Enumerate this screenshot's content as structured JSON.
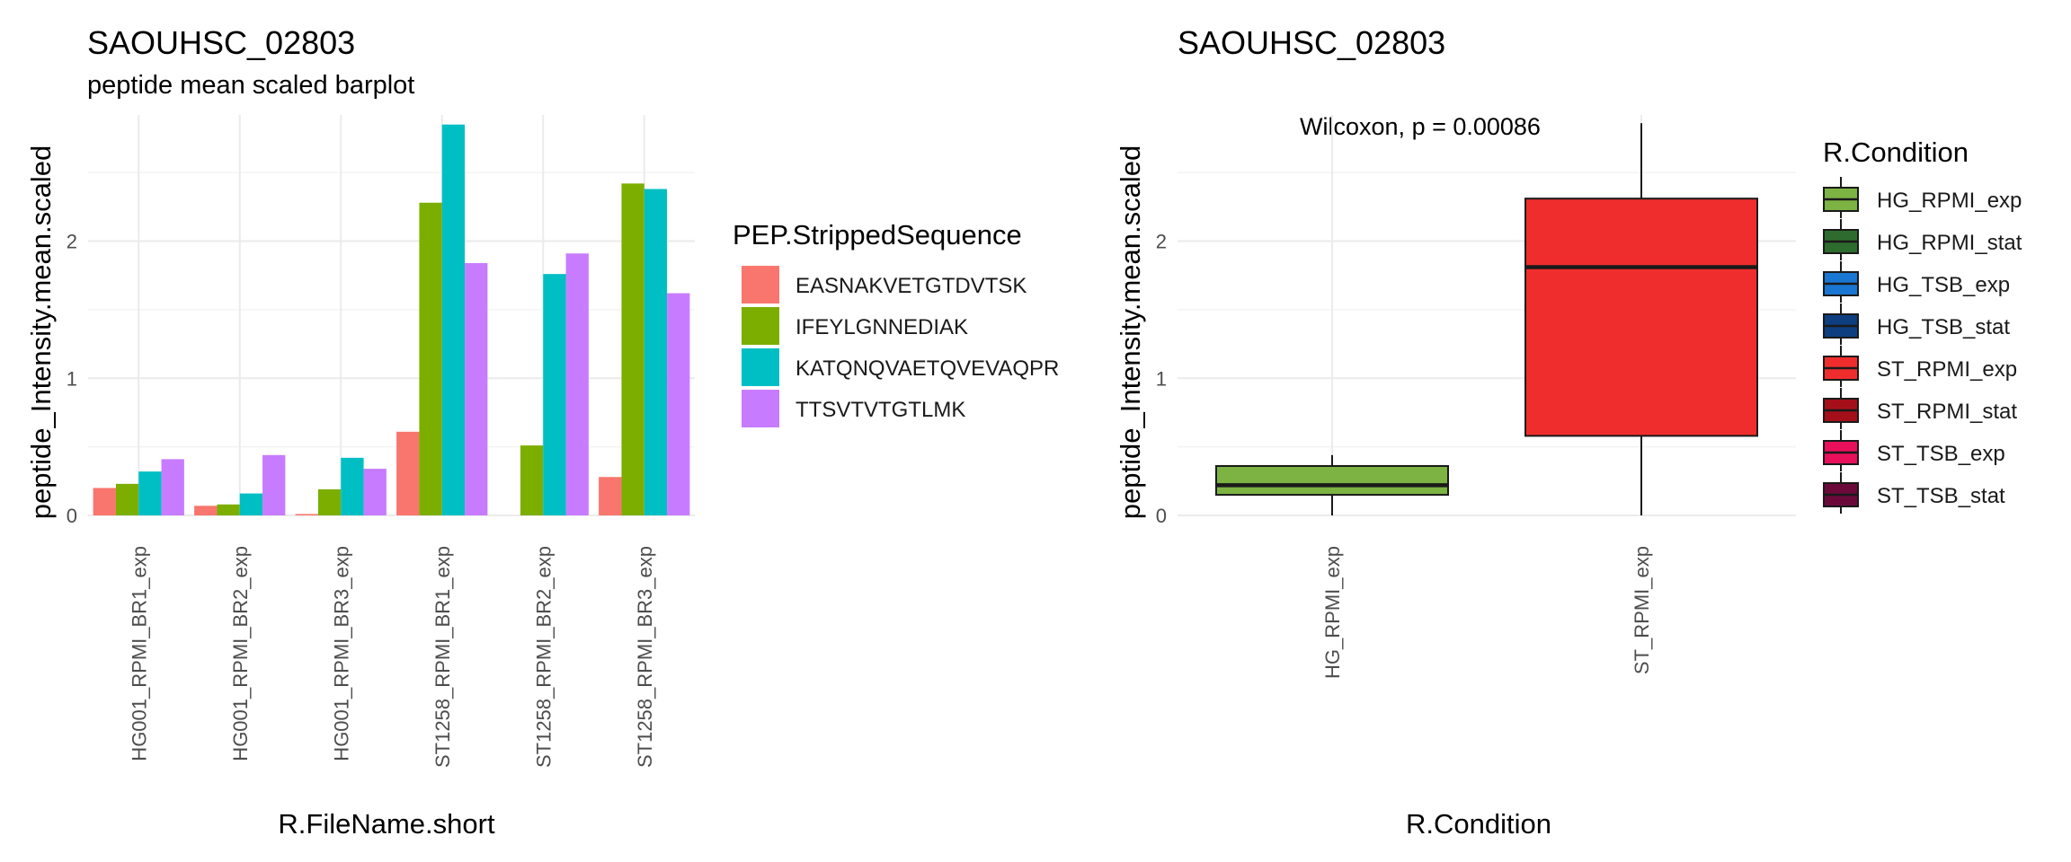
{
  "chart_data": [
    {
      "type": "bar",
      "title": "SAOUHSC_02803",
      "subtitle": "peptide mean scaled barplot",
      "xlabel": "R.FileName.short",
      "ylabel": "peptide_Intensity.mean.scaled",
      "ylim": [
        0,
        2.92
      ],
      "yticks": [
        "0",
        "1",
        "2"
      ],
      "grid": true,
      "legend_title": "PEP.StrippedSequence",
      "legend_position": "right",
      "categories": [
        "HG001_RPMI_BR1_exp",
        "HG001_RPMI_BR2_exp",
        "HG001_RPMI_BR3_exp",
        "ST1258_RPMI_BR1_exp",
        "ST1258_RPMI_BR2_exp",
        "ST1258_RPMI_BR3_exp"
      ],
      "series": [
        {
          "name": "EASNAKVETGTDVTSK",
          "color": "#F8766D",
          "values": [
            0.2,
            0.07,
            0.01,
            0.61,
            0.0,
            0.28
          ]
        },
        {
          "name": "IFEYLGNNEDIAK",
          "color": "#7CAE00",
          "values": [
            0.23,
            0.08,
            0.19,
            2.28,
            0.51,
            2.42
          ]
        },
        {
          "name": "KATQNQVAETQVEVAQPR",
          "color": "#00BFC4",
          "values": [
            0.32,
            0.16,
            0.42,
            2.85,
            1.76,
            2.38
          ]
        },
        {
          "name": "TTSVTVTGTLMK",
          "color": "#C77CFF",
          "values": [
            0.41,
            0.44,
            0.34,
            1.84,
            1.91,
            1.62
          ]
        }
      ]
    },
    {
      "type": "box",
      "title": "SAOUHSC_02803",
      "xlabel": "R.Condition",
      "ylabel": "peptide_Intensity.mean.scaled",
      "ylim": [
        0,
        2.92
      ],
      "yticks": [
        "0",
        "1",
        "2"
      ],
      "grid": true,
      "annotation": "Wilcoxon, p = 0.00086",
      "legend_title": "R.Condition",
      "legend_position": "right",
      "categories": [
        "HG_RPMI_exp",
        "ST_RPMI_exp"
      ],
      "boxes": [
        {
          "category": "HG_RPMI_exp",
          "min": 0.0,
          "q1": 0.15,
          "median": 0.22,
          "q3": 0.36,
          "max": 0.44,
          "color": "#7CB342"
        },
        {
          "category": "ST_RPMI_exp",
          "min": 0.0,
          "q1": 0.58,
          "median": 1.81,
          "q3": 2.31,
          "max": 2.86,
          "color": "#EF2D2D"
        }
      ],
      "legend": [
        {
          "label": "HG_RPMI_exp",
          "color": "#7CB342"
        },
        {
          "label": "HG_RPMI_stat",
          "color": "#2E6B2E"
        },
        {
          "label": "HG_TSB_exp",
          "color": "#1976D2"
        },
        {
          "label": "HG_TSB_stat",
          "color": "#0D3E80"
        },
        {
          "label": "ST_RPMI_exp",
          "color": "#EF2D2D"
        },
        {
          "label": "ST_RPMI_stat",
          "color": "#A50F1A"
        },
        {
          "label": "ST_TSB_exp",
          "color": "#E8105A"
        },
        {
          "label": "ST_TSB_stat",
          "color": "#6B0A3A"
        }
      ]
    }
  ]
}
